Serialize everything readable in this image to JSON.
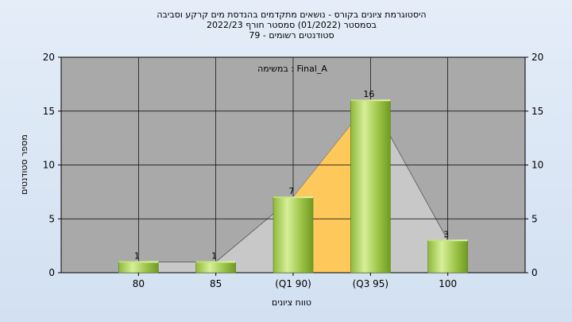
{
  "chart_data": {
    "type": "bar",
    "title_lines": [
      "היסטוגרמת ציונים בקורס - נושאים מתקדמים בהנדסת מים קרקע וסביבה",
      "בסמסטר  (01/2022)  סמסטר חורף 2022/23",
      "סטודנטים רשומים - 79"
    ],
    "annotation": "במשימה : Final_A",
    "categories": [
      "80",
      "85",
      "(Q1 90)",
      "(Q3 95)",
      "100"
    ],
    "values": [
      1,
      1,
      7,
      16,
      3
    ],
    "xlabel": "טווח ציונים",
    "ylabel": "מספר סטודנטים",
    "ylim": [
      0,
      20
    ],
    "yticks": [
      0,
      5,
      10,
      15,
      20
    ],
    "grid": true,
    "legend": "none",
    "colors": {
      "plot_bg": "#a9a9a9",
      "area_outer": "#c8c8c8",
      "area_inner": "#ffc85a",
      "bar_light": "#d7ef9a",
      "bar_dark": "#6f9a22",
      "grid": "#000000"
    }
  }
}
